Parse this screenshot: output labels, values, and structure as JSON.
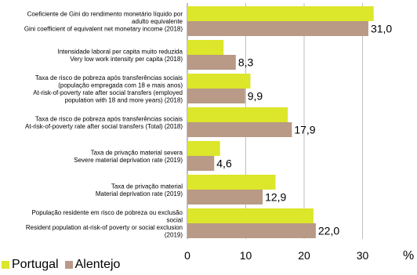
{
  "colors": {
    "portugal": "#dce62a",
    "alentejo": "#b89a86",
    "gridline": "#bfbfbf"
  },
  "chart_data": {
    "type": "bar",
    "orientation": "horizontal",
    "categories": [
      [
        "Coeficiente de Gini do rendimento monetário líquido por",
        "adulto equivalente",
        "Gini coefficient of equivalent net monetary income (2018)"
      ],
      [
        "Intensidade laboral per capita muito reduzida",
        "Very low work intensity per capita (2018)"
      ],
      [
        "Taxa de risco de pobreza após transferências sociais",
        "(população empregada com 18 e mais anos)",
        "At-risk-of-poverty rate after social transfers  (employed",
        "population with 18 and more years) (2018)"
      ],
      [
        "Taxa de risco de pobreza após transferências sociais",
        "At-risk-of-poverty rate after social transfers  (Total) (2018)"
      ],
      [
        "Taxa de privação material severa",
        "Severe material deprivation rate (2019)"
      ],
      [
        "Taxa de privação material",
        "Material deprivation rate (2019)"
      ],
      [
        "População residente em risco de pobreza ou exclusão",
        "social",
        "Resident population at-risk-of poverty or social exclusion",
        "(2019)"
      ]
    ],
    "series": [
      {
        "name": "Portugal",
        "values": [
          31.9,
          6.2,
          10.8,
          17.2,
          5.6,
          15.1,
          21.6
        ]
      },
      {
        "name": "Alentejo",
        "values": [
          31.0,
          8.3,
          9.9,
          17.9,
          4.6,
          12.9,
          22.0
        ]
      }
    ],
    "data_labels": [
      "31,0",
      "8,3",
      "9,9",
      "17,9",
      "4,6",
      "12,9",
      "22,0"
    ],
    "xticks": [
      "0",
      "10",
      "20",
      "30"
    ],
    "xlim": [
      0,
      35
    ],
    "unit": "%",
    "legend_position": "bottom-left",
    "grid": true
  }
}
